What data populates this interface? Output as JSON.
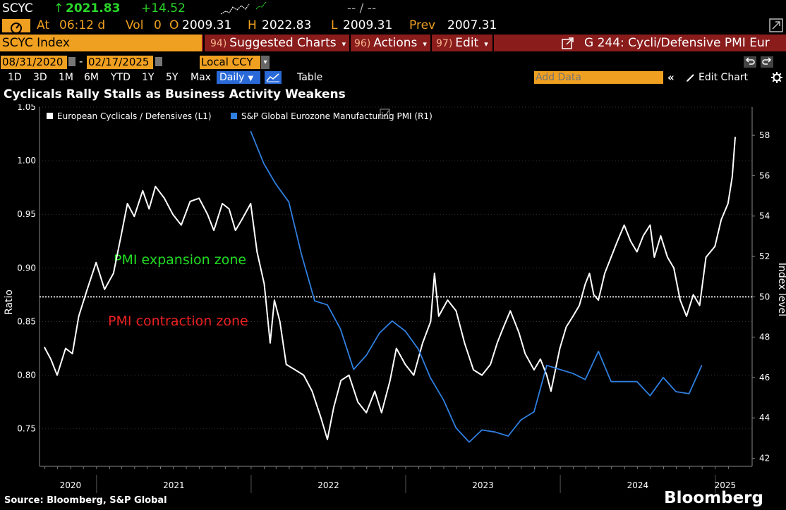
{
  "ticker_bar": {
    "ticker": "SCYC",
    "arrow": "↑",
    "last": "2021.83",
    "change": "+14.52",
    "bidask": "-- / --"
  },
  "quote_bar": {
    "at_label": "At",
    "time": "06:12 d",
    "vol_label": "Vol",
    "vol": "0",
    "open_label": "O",
    "open": "2009.31",
    "high_label": "H",
    "high": "2022.83",
    "low_label": "L",
    "low": "2009.31",
    "prev_label": "Prev",
    "prev": "2007.31"
  },
  "menu_bar": {
    "security": "SCYC Index",
    "suggested_num": "94)",
    "suggested": "Suggested Charts",
    "actions_num": "96)",
    "actions": "Actions",
    "edit_num": "97)",
    "edit": "Edit",
    "chart_title": "G 244: Cycli/Defensive PMI Eur"
  },
  "range_bar": {
    "start_date": "08/31/2020",
    "end_date": "02/17/2025",
    "currency": "Local CCY"
  },
  "toolbar": {
    "periods": [
      "1D",
      "3D",
      "1M",
      "6M",
      "YTD",
      "1Y",
      "5Y",
      "Max"
    ],
    "frequency": "Daily",
    "table_label": "Table",
    "add_data_placeholder": "Add Data",
    "edit_chart": "Edit Chart"
  },
  "chart_title": "Cyclicals Rally Stalls as Business Activity Weakens",
  "footer": {
    "source": "Source: Bloomberg, S&P Global",
    "brand": "Bloomberg"
  },
  "colors": {
    "series_white": "#ffffff",
    "series_blue": "#2f7fe0",
    "expansion_text": "#22dd22",
    "contraction_text": "#ee2020",
    "menu_bar": "#8a1c1c",
    "date_box": "#f0a020"
  },
  "chart_data": {
    "type": "line",
    "title": "Cyclicals Rally Stalls as Business Activity Weakens",
    "left_axis": {
      "label": "Ratio",
      "range": [
        0.715,
        1.05
      ],
      "ticks": [
        "1.05",
        "1.00",
        "0.95",
        "0.90",
        "0.85",
        "0.80",
        "0.75"
      ]
    },
    "right_axis": {
      "label": "Index level",
      "range": [
        41.6,
        59.4
      ],
      "ticks": [
        "58",
        "56",
        "54",
        "52",
        "50",
        "48",
        "46",
        "44",
        "42"
      ]
    },
    "x_axis": {
      "labels": [
        "2020",
        "2021",
        "2022",
        "2023",
        "2024",
        "2025"
      ],
      "range": [
        "2020-08-31",
        "2025-02-17"
      ]
    },
    "reference_line": {
      "axis": "right",
      "value": 50
    },
    "annotations": [
      "PMI expansion zone",
      "PMI contraction zone"
    ],
    "legend_position": "top-left",
    "series": [
      {
        "name": "European Cyclicals / Defensives (L1)",
        "axis": "left",
        "points": [
          [
            "2020-08-31",
            0.826
          ],
          [
            "2020-09-15",
            0.815
          ],
          [
            "2020-09-30",
            0.8
          ],
          [
            "2020-10-20",
            0.825
          ],
          [
            "2020-11-05",
            0.82
          ],
          [
            "2020-11-20",
            0.855
          ],
          [
            "2020-12-10",
            0.88
          ],
          [
            "2020-12-31",
            0.905
          ],
          [
            "2021-01-20",
            0.88
          ],
          [
            "2021-02-10",
            0.895
          ],
          [
            "2021-02-28",
            0.93
          ],
          [
            "2021-03-15",
            0.96
          ],
          [
            "2021-03-31",
            0.948
          ],
          [
            "2021-04-20",
            0.972
          ],
          [
            "2021-05-05",
            0.955
          ],
          [
            "2021-05-20",
            0.976
          ],
          [
            "2021-06-10",
            0.965
          ],
          [
            "2021-06-30",
            0.95
          ],
          [
            "2021-07-20",
            0.94
          ],
          [
            "2021-08-10",
            0.962
          ],
          [
            "2021-08-31",
            0.965
          ],
          [
            "2021-09-20",
            0.95
          ],
          [
            "2021-10-05",
            0.935
          ],
          [
            "2021-10-25",
            0.96
          ],
          [
            "2021-11-10",
            0.955
          ],
          [
            "2021-11-25",
            0.935
          ],
          [
            "2021-12-10",
            0.945
          ],
          [
            "2021-12-31",
            0.96
          ],
          [
            "2022-01-15",
            0.915
          ],
          [
            "2022-02-01",
            0.885
          ],
          [
            "2022-02-15",
            0.83
          ],
          [
            "2022-02-25",
            0.87
          ],
          [
            "2022-03-10",
            0.85
          ],
          [
            "2022-03-25",
            0.81
          ],
          [
            "2022-04-15",
            0.805
          ],
          [
            "2022-05-05",
            0.8
          ],
          [
            "2022-05-25",
            0.785
          ],
          [
            "2022-06-15",
            0.76
          ],
          [
            "2022-06-30",
            0.74
          ],
          [
            "2022-07-15",
            0.77
          ],
          [
            "2022-08-01",
            0.795
          ],
          [
            "2022-08-20",
            0.8
          ],
          [
            "2022-09-10",
            0.775
          ],
          [
            "2022-09-30",
            0.765
          ],
          [
            "2022-10-20",
            0.785
          ],
          [
            "2022-11-05",
            0.765
          ],
          [
            "2022-11-25",
            0.795
          ],
          [
            "2022-12-10",
            0.825
          ],
          [
            "2022-12-31",
            0.81
          ],
          [
            "2023-01-20",
            0.8
          ],
          [
            "2023-02-10",
            0.83
          ],
          [
            "2023-03-01",
            0.85
          ],
          [
            "2023-03-10",
            0.895
          ],
          [
            "2023-03-20",
            0.855
          ],
          [
            "2023-04-10",
            0.87
          ],
          [
            "2023-04-30",
            0.86
          ],
          [
            "2023-05-20",
            0.83
          ],
          [
            "2023-06-10",
            0.805
          ],
          [
            "2023-06-30",
            0.8
          ],
          [
            "2023-07-20",
            0.81
          ],
          [
            "2023-08-05",
            0.83
          ],
          [
            "2023-08-20",
            0.845
          ],
          [
            "2023-09-05",
            0.86
          ],
          [
            "2023-09-25",
            0.84
          ],
          [
            "2023-10-10",
            0.82
          ],
          [
            "2023-10-31",
            0.805
          ],
          [
            "2023-11-15",
            0.815
          ],
          [
            "2023-11-30",
            0.8
          ],
          [
            "2023-12-10",
            0.785
          ],
          [
            "2023-12-31",
            0.825
          ],
          [
            "2024-01-15",
            0.845
          ],
          [
            "2024-01-31",
            0.855
          ],
          [
            "2024-02-15",
            0.865
          ],
          [
            "2024-02-29",
            0.885
          ],
          [
            "2024-03-10",
            0.895
          ],
          [
            "2024-03-20",
            0.875
          ],
          [
            "2024-03-31",
            0.87
          ],
          [
            "2024-04-15",
            0.895
          ],
          [
            "2024-04-30",
            0.91
          ],
          [
            "2024-05-15",
            0.925
          ],
          [
            "2024-05-31",
            0.94
          ],
          [
            "2024-06-15",
            0.925
          ],
          [
            "2024-06-30",
            0.915
          ],
          [
            "2024-07-15",
            0.93
          ],
          [
            "2024-07-31",
            0.94
          ],
          [
            "2024-08-10",
            0.91
          ],
          [
            "2024-08-25",
            0.93
          ],
          [
            "2024-09-10",
            0.91
          ],
          [
            "2024-09-25",
            0.9
          ],
          [
            "2024-10-10",
            0.87
          ],
          [
            "2024-10-25",
            0.855
          ],
          [
            "2024-11-10",
            0.875
          ],
          [
            "2024-11-25",
            0.865
          ],
          [
            "2024-12-10",
            0.91
          ],
          [
            "2024-12-31",
            0.92
          ],
          [
            "2025-01-15",
            0.945
          ],
          [
            "2025-01-31",
            0.96
          ],
          [
            "2025-02-10",
            0.985
          ],
          [
            "2025-02-17",
            1.022
          ]
        ]
      },
      {
        "name": "S&P Global Eurozone Manufacturing PMI (R1)",
        "axis": "right",
        "points": [
          [
            "2021-12-31",
            58.2
          ],
          [
            "2022-01-31",
            56.6
          ],
          [
            "2022-02-28",
            55.6
          ],
          [
            "2022-03-31",
            54.7
          ],
          [
            "2022-04-30",
            52.1
          ],
          [
            "2022-05-31",
            49.8
          ],
          [
            "2022-06-30",
            49.6
          ],
          [
            "2022-07-31",
            48.4
          ],
          [
            "2022-08-31",
            46.4
          ],
          [
            "2022-09-30",
            47.1
          ],
          [
            "2022-10-31",
            48.2
          ],
          [
            "2022-11-30",
            48.8
          ],
          [
            "2022-12-31",
            48.3
          ],
          [
            "2023-01-31",
            47.4
          ],
          [
            "2023-02-28",
            46.0
          ],
          [
            "2023-03-31",
            44.9
          ],
          [
            "2023-04-30",
            43.5
          ],
          [
            "2023-05-31",
            42.8
          ],
          [
            "2023-06-30",
            43.4
          ],
          [
            "2023-07-31",
            43.3
          ],
          [
            "2023-08-31",
            43.1
          ],
          [
            "2023-09-30",
            43.9
          ],
          [
            "2023-10-31",
            44.3
          ],
          [
            "2023-11-30",
            46.6
          ],
          [
            "2023-12-31",
            46.4
          ],
          [
            "2024-01-31",
            46.2
          ],
          [
            "2024-02-29",
            45.9
          ],
          [
            "2024-03-31",
            47.3
          ],
          [
            "2024-04-30",
            45.8
          ],
          [
            "2024-05-31",
            45.8
          ],
          [
            "2024-06-30",
            45.8
          ],
          [
            "2024-07-31",
            45.1
          ],
          [
            "2024-08-31",
            46.0
          ],
          [
            "2024-09-30",
            45.3
          ],
          [
            "2024-10-31",
            45.2
          ],
          [
            "2024-11-30",
            46.6
          ]
        ]
      }
    ]
  }
}
